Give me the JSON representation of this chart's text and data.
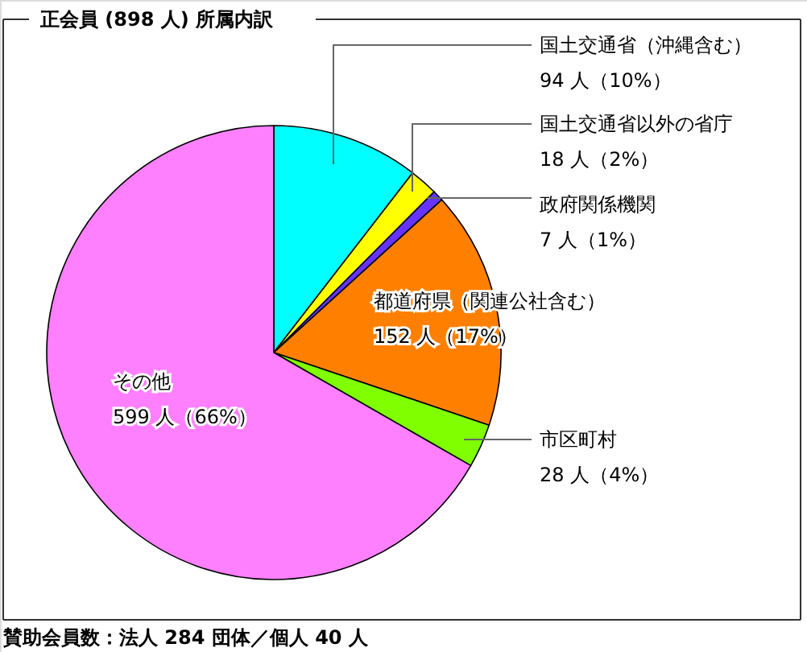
{
  "chart_data": {
    "type": "pie",
    "title": "正会員 (898 人) 所属内訳",
    "categories": [
      "国土交通省（沖縄含む）",
      "国土交通省以外の省庁",
      "政府関係機関",
      "都道府県（関連公社含む）",
      "市区町村",
      "その他"
    ],
    "values": [
      94,
      18,
      7,
      152,
      28,
      599
    ],
    "value_labels": [
      "94 人（10%）",
      "18 人（2%）",
      "7 人（1%）",
      "152 人（17%）",
      "28 人（4%）",
      "599 人（66%）"
    ],
    "colors": [
      "#00ffff",
      "#ffff00",
      "#6633ff",
      "#ff8000",
      "#80ff00",
      "#ff80ff"
    ],
    "annotations": [
      "賛助会員数：法人 284 団体／個人 40 人"
    ]
  }
}
